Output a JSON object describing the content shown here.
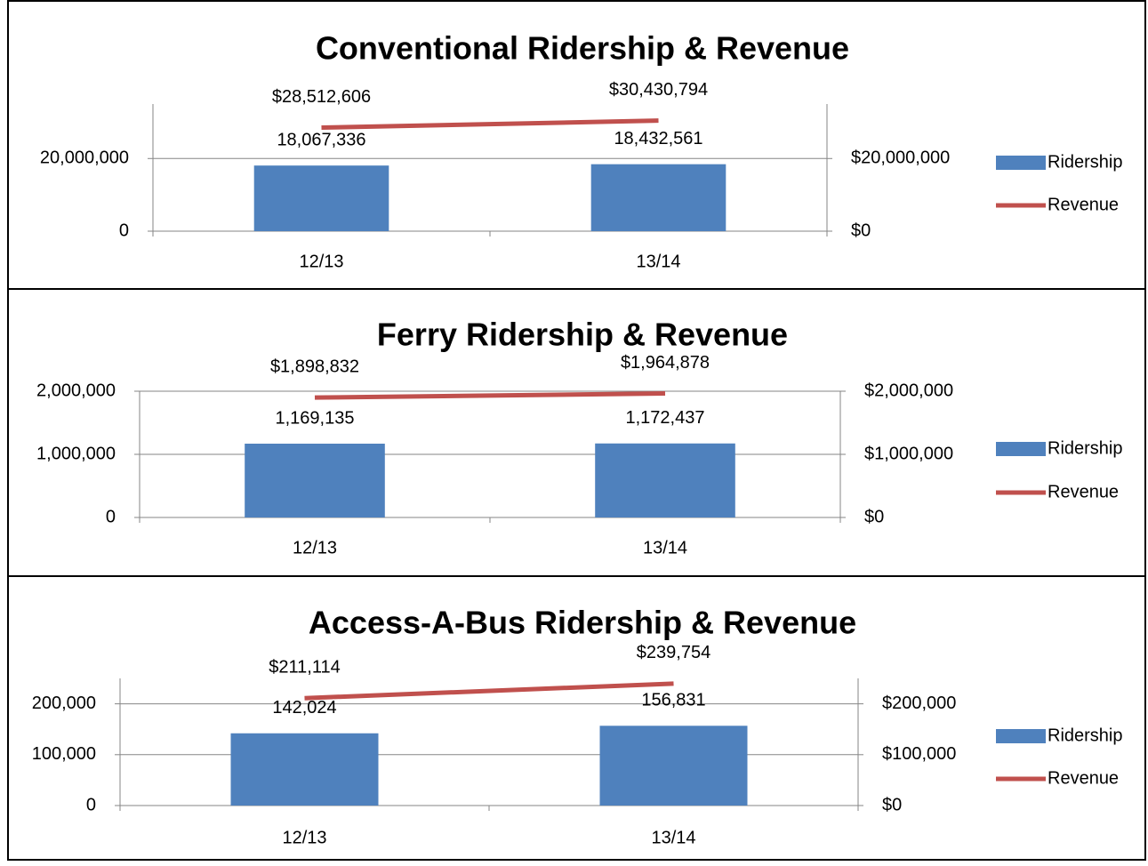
{
  "chart_data": [
    {
      "type": "bar",
      "title": "Conventional Ridership & Revenue",
      "categories": [
        "12/13",
        "13/14"
      ],
      "series": [
        {
          "name": "Ridership",
          "type": "bar",
          "color": "#4f81bd",
          "values": [
            18067336,
            18432561
          ],
          "value_labels": [
            "18,067,336",
            "18,432,561"
          ]
        },
        {
          "name": "Revenue",
          "type": "line",
          "axis": "y2",
          "color": "#c0504d",
          "values": [
            28512606,
            30430794
          ],
          "value_labels": [
            "$28,512,606",
            "$30,430,794"
          ]
        }
      ],
      "ylim": [
        0,
        35000000
      ],
      "yticks": [
        0,
        {
          "value": 20000000,
          "label": "20,000,000"
        }
      ],
      "y2lim": [
        0,
        35000000
      ],
      "y2ticks": [
        {
          "value": 0,
          "label": "$0"
        },
        {
          "value": 20000000,
          "label": "$20,000,000"
        }
      ],
      "grid": true,
      "legend": "right"
    },
    {
      "type": "bar",
      "title": "Ferry Ridership & Revenue",
      "categories": [
        "12/13",
        "13/14"
      ],
      "series": [
        {
          "name": "Ridership",
          "type": "bar",
          "color": "#4f81bd",
          "values": [
            1169135,
            1172437
          ],
          "value_labels": [
            "1,169,135",
            "1,172,437"
          ]
        },
        {
          "name": "Revenue",
          "type": "line",
          "axis": "y2",
          "color": "#c0504d",
          "values": [
            1898832,
            1964878
          ],
          "value_labels": [
            "$1,898,832",
            "$1,964,878"
          ]
        }
      ],
      "ylim": [
        0,
        2000000
      ],
      "yticks": [
        0,
        {
          "value": 1000000,
          "label": "1,000,000"
        },
        {
          "value": 2000000,
          "label": "2,000,000"
        }
      ],
      "y2lim": [
        0,
        2000000
      ],
      "y2ticks": [
        {
          "value": 0,
          "label": "$0"
        },
        {
          "value": 1000000,
          "label": "$1,000,000"
        },
        {
          "value": 2000000,
          "label": "$2,000,000"
        }
      ],
      "grid": true,
      "legend": "right"
    },
    {
      "type": "bar",
      "title": "Access-A-Bus Ridership & Revenue",
      "categories": [
        "12/13",
        "13/14"
      ],
      "series": [
        {
          "name": "Ridership",
          "type": "bar",
          "color": "#4f81bd",
          "values": [
            142024,
            156831
          ],
          "value_labels": [
            "142,024",
            "156,831"
          ]
        },
        {
          "name": "Revenue",
          "type": "line",
          "axis": "y2",
          "color": "#c0504d",
          "values": [
            211114,
            239754
          ],
          "value_labels": [
            "$211,114",
            "$239,754"
          ]
        }
      ],
      "ylim": [
        0,
        250000
      ],
      "yticks": [
        0,
        {
          "value": 100000,
          "label": "100,000"
        },
        {
          "value": 200000,
          "label": "200,000"
        }
      ],
      "y2lim": [
        0,
        250000
      ],
      "y2ticks": [
        {
          "value": 0,
          "label": "$0"
        },
        {
          "value": 100000,
          "label": "$100,000"
        },
        {
          "value": 200000,
          "label": "$200,000"
        }
      ],
      "grid": true,
      "legend": "right"
    }
  ]
}
